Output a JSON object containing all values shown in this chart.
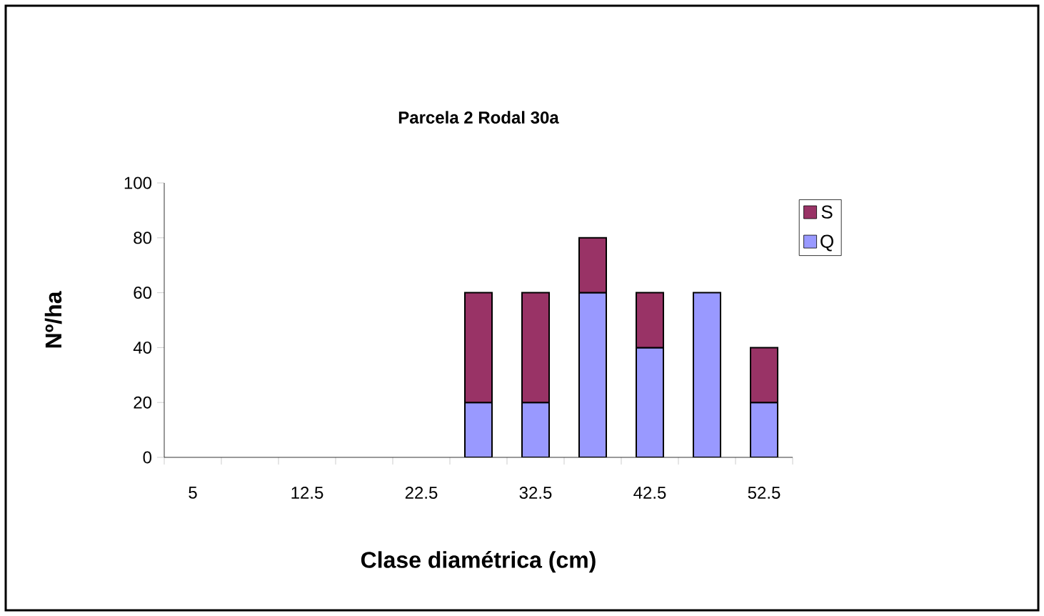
{
  "chart_data": {
    "type": "bar",
    "title": "Parcela 2 Rodal 30a",
    "xlabel": "Clase diamétrica (cm)",
    "ylabel": "Nº/ha",
    "categories": [
      "5",
      null,
      "12.5",
      null,
      "22.5",
      null,
      "32.5",
      null,
      "42.5",
      null,
      "52.5"
    ],
    "series": [
      {
        "name": "Q",
        "color": "#9999ff",
        "values": [
          null,
          null,
          null,
          null,
          null,
          20,
          20,
          60,
          40,
          60,
          20
        ]
      },
      {
        "name": "S",
        "color": "#993366",
        "values": [
          null,
          null,
          null,
          null,
          null,
          40,
          40,
          20,
          20,
          null,
          20
        ]
      }
    ],
    "stacked": true,
    "ylim": [
      0,
      100
    ],
    "yticks": [
      0,
      20,
      40,
      60,
      80,
      100
    ],
    "grid": false,
    "legend": "right"
  }
}
